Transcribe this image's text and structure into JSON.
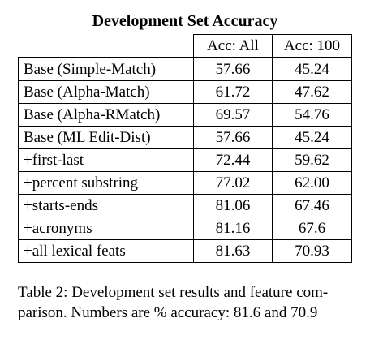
{
  "table": {
    "title": "Development Set Accuracy",
    "columns": [
      "",
      "Acc: All",
      "Acc: 100"
    ],
    "rows": [
      {
        "name": "Base (Simple-Match)",
        "acc_all": "57.66",
        "acc_100": "45.24"
      },
      {
        "name": "Base (Alpha-Match)",
        "acc_all": "61.72",
        "acc_100": "47.62"
      },
      {
        "name": "Base (Alpha-RMatch)",
        "acc_all": "69.57",
        "acc_100": "54.76"
      },
      {
        "name": "Base (ML Edit-Dist)",
        "acc_all": "57.66",
        "acc_100": "45.24"
      },
      {
        "name": "+first-last",
        "acc_all": "72.44",
        "acc_100": "59.62"
      },
      {
        "name": "+percent substring",
        "acc_all": "77.02",
        "acc_100": "62.00"
      },
      {
        "name": "+starts-ends",
        "acc_all": "81.06",
        "acc_100": "67.46"
      },
      {
        "name": "+acronyms",
        "acc_all": "81.16",
        "acc_100": "67.6"
      },
      {
        "name": "+all lexical feats",
        "acc_all": "81.63",
        "acc_100": "70.93"
      }
    ]
  },
  "caption": {
    "line1": "Table 2: Development set results and feature com-",
    "line2": "parison. Numbers are % accuracy: 81.6 and 70.9"
  },
  "chart_data": {
    "type": "table",
    "title": "Development Set Accuracy",
    "columns": [
      "Acc: All",
      "Acc: 100"
    ],
    "categories": [
      "Base (Simple-Match)",
      "Base (Alpha-Match)",
      "Base (Alpha-RMatch)",
      "Base (ML Edit-Dist)",
      "+first-last",
      "+percent substring",
      "+starts-ends",
      "+acronyms",
      "+all lexical feats"
    ],
    "series": [
      {
        "name": "Acc: All",
        "values": [
          57.66,
          61.72,
          69.57,
          57.66,
          72.44,
          77.02,
          81.06,
          81.16,
          81.63
        ]
      },
      {
        "name": "Acc: 100",
        "values": [
          45.24,
          47.62,
          54.76,
          45.24,
          59.62,
          62.0,
          67.46,
          67.6,
          70.93
        ]
      }
    ]
  }
}
